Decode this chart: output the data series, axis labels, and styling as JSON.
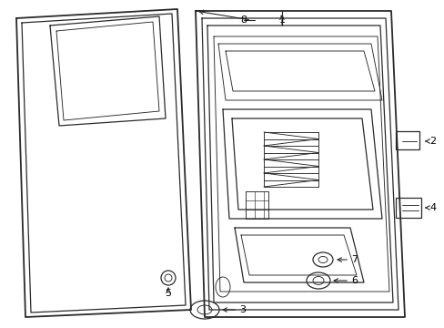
{
  "background": "#ffffff",
  "line_color": "#2a2a2a",
  "label_color": "#000000",
  "figsize": [
    4.89,
    3.6
  ],
  "dpi": 100,
  "arrow_color": "#2a2a2a"
}
